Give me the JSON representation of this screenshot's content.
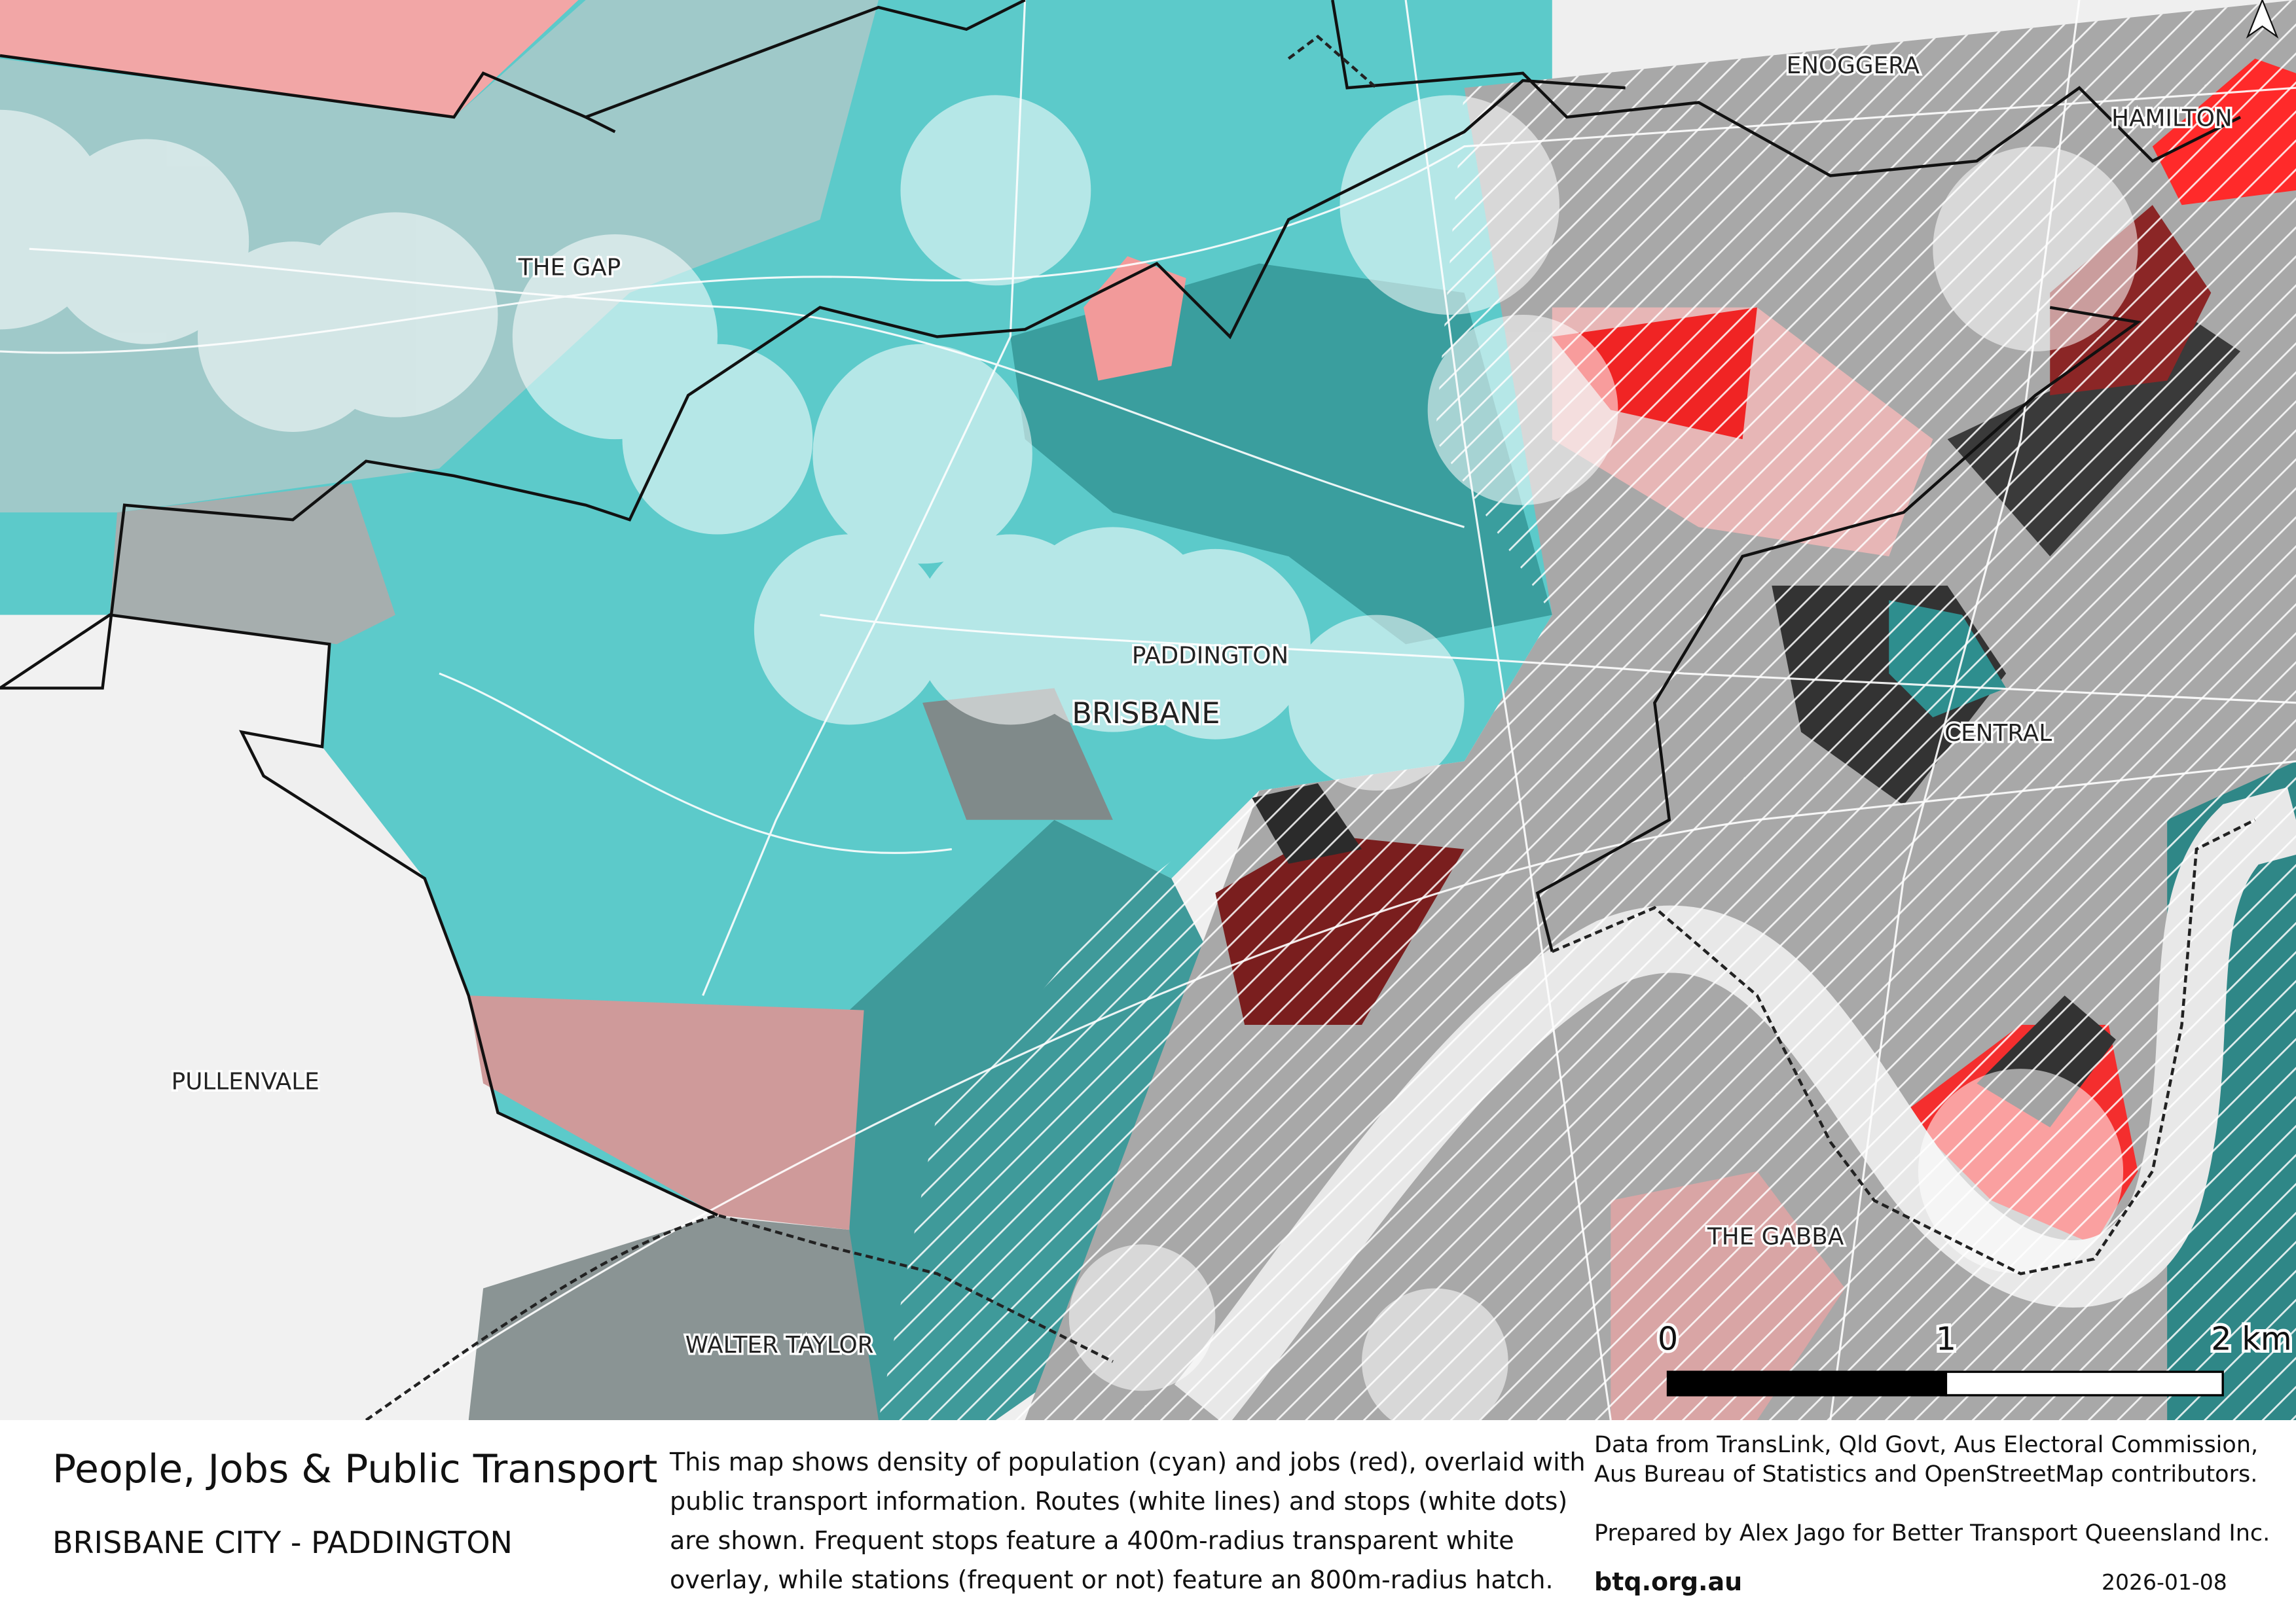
{
  "map": {
    "labels": {
      "the_gap": "THE GAP",
      "paddington": "PADDINGTON",
      "brisbane": "BRISBANE",
      "enoggera": "ENOGGERA",
      "hamilton": "HAMILTON",
      "central": "CENTRAL",
      "pullenvale": "PULLENVALE",
      "the_gabba": "THE GABBA",
      "walter_taylor": "WALTER TAYLOR"
    },
    "scale_bar": {
      "tick0": "0",
      "tick1": "1",
      "tick2": "2 km"
    },
    "colors": {
      "population": "#4fd0d0",
      "jobs": "#f03030",
      "neutral": "#9a9a9a"
    }
  },
  "footer": {
    "title": "People, Jobs & Public Transport",
    "subtitle": "BRISBANE CITY - PADDINGTON",
    "description": [
      "This map shows density of population (cyan) and jobs (red), overlaid with",
      "public transport information. Routes (white lines) and stops (white dots)",
      "are shown. Frequent stops feature a 400m-radius transparent white",
      "overlay, while stations (frequent or not) feature an 800m-radius hatch."
    ],
    "credits": [
      "Data from TransLink,  Qld Govt,  Aus Electoral Commission,",
      "Aus Bureau of Statistics and OpenStreetMap contributors.",
      "Prepared by Alex Jago for Better Transport Queensland Inc."
    ],
    "site": "btq.org.au",
    "date": "2026-01-08"
  }
}
